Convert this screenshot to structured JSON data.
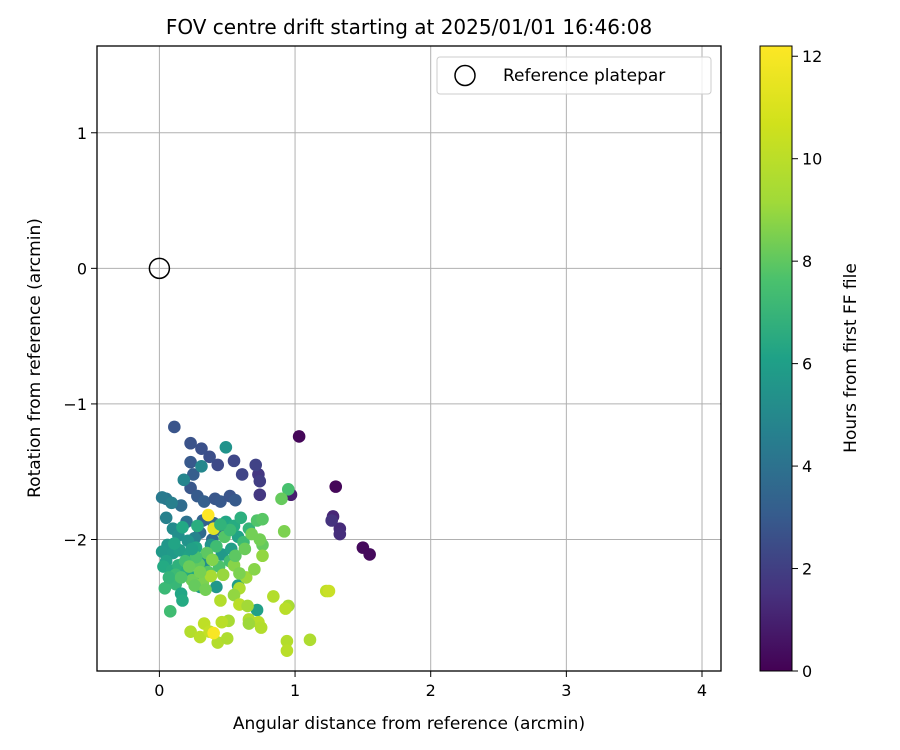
{
  "chart_data": {
    "type": "scatter",
    "title": "FOV centre drift starting at 2025/01/01 16:46:08",
    "xlabel": "Angular distance from reference (arcmin)",
    "ylabel": "Rotation from reference (arcmin)",
    "xlim": [
      -0.46,
      4.14
    ],
    "ylim": [
      -2.97,
      1.64
    ],
    "xticks": [
      0,
      1,
      2,
      3,
      4
    ],
    "yticks": [
      -2,
      -1,
      0,
      1
    ],
    "xtick_labels": [
      "0",
      "1",
      "2",
      "3",
      "4"
    ],
    "ytick_labels": [
      "−2",
      "−1",
      "0",
      "1"
    ],
    "grid": true,
    "legend": {
      "position": "top-right",
      "entries": [
        "Reference platepar"
      ]
    },
    "reference_point": {
      "name": "Reference platepar",
      "x": 0,
      "y": 0,
      "marker": "open-circle"
    },
    "colorbar": {
      "label": "Hours from first FF file",
      "range": [
        0,
        12.2
      ],
      "ticks": [
        0,
        2,
        4,
        6,
        8,
        10,
        12
      ],
      "tick_labels": [
        "0",
        "2",
        "4",
        "6",
        "8",
        "10",
        "12"
      ],
      "colormap": "viridis"
    },
    "points": [
      {
        "x": 1.03,
        "y": -1.24,
        "h": 0.2
      },
      {
        "x": 1.3,
        "y": -1.61,
        "h": 0.2
      },
      {
        "x": 1.5,
        "y": -2.06,
        "h": 0.3
      },
      {
        "x": 1.55,
        "y": -2.11,
        "h": 0.3
      },
      {
        "x": 0.97,
        "y": -1.67,
        "h": 1.0
      },
      {
        "x": 1.28,
        "y": -1.83,
        "h": 1.3
      },
      {
        "x": 1.33,
        "y": -1.92,
        "h": 1.5
      },
      {
        "x": 1.33,
        "y": -1.96,
        "h": 1.6
      },
      {
        "x": 1.27,
        "y": -1.86,
        "h": 1.8
      },
      {
        "x": 0.73,
        "y": -1.52,
        "h": 2.0
      },
      {
        "x": 0.74,
        "y": -1.57,
        "h": 2.2
      },
      {
        "x": 0.74,
        "y": -1.67,
        "h": 2.0
      },
      {
        "x": 0.71,
        "y": -1.45,
        "h": 2.4
      },
      {
        "x": 0.61,
        "y": -1.52,
        "h": 2.5
      },
      {
        "x": 0.55,
        "y": -1.42,
        "h": 2.6
      },
      {
        "x": 0.43,
        "y": -1.45,
        "h": 2.7
      },
      {
        "x": 0.37,
        "y": -1.39,
        "h": 2.9
      },
      {
        "x": 0.31,
        "y": -1.33,
        "h": 3.0
      },
      {
        "x": 0.23,
        "y": -1.29,
        "h": 3.1
      },
      {
        "x": 0.11,
        "y": -1.17,
        "h": 3.2
      },
      {
        "x": 0.23,
        "y": -1.43,
        "h": 3.4
      },
      {
        "x": 0.25,
        "y": -1.52,
        "h": 3.6
      },
      {
        "x": 0.23,
        "y": -1.62,
        "h": 3.3
      },
      {
        "x": 0.28,
        "y": -1.68,
        "h": 3.5
      },
      {
        "x": 0.33,
        "y": -1.72,
        "h": 3.7
      },
      {
        "x": 0.41,
        "y": -1.7,
        "h": 3.3
      },
      {
        "x": 0.45,
        "y": -1.72,
        "h": 3.4
      },
      {
        "x": 0.52,
        "y": -1.68,
        "h": 3.2
      },
      {
        "x": 0.56,
        "y": -1.71,
        "h": 3.5
      },
      {
        "x": 0.32,
        "y": -1.86,
        "h": 3.8
      },
      {
        "x": 0.4,
        "y": -1.88,
        "h": 4.0
      },
      {
        "x": 0.45,
        "y": -1.93,
        "h": 4.1
      },
      {
        "x": 0.39,
        "y": -2.0,
        "h": 4.3
      },
      {
        "x": 0.3,
        "y": -1.95,
        "h": 4.2
      },
      {
        "x": 0.16,
        "y": -1.75,
        "h": 4.3
      },
      {
        "x": 0.05,
        "y": -1.7,
        "h": 4.8
      },
      {
        "x": 0.02,
        "y": -1.69,
        "h": 5.0
      },
      {
        "x": 0.09,
        "y": -1.73,
        "h": 5.2
      },
      {
        "x": 0.05,
        "y": -1.84,
        "h": 5.3
      },
      {
        "x": 0.2,
        "y": -1.87,
        "h": 4.6
      },
      {
        "x": 0.18,
        "y": -1.56,
        "h": 5.5
      },
      {
        "x": 0.31,
        "y": -1.46,
        "h": 5.6
      },
      {
        "x": 0.49,
        "y": -1.32,
        "h": 6.2
      },
      {
        "x": 0.26,
        "y": -1.99,
        "h": 5.4
      },
      {
        "x": 0.1,
        "y": -1.92,
        "h": 5.8
      },
      {
        "x": 0.14,
        "y": -1.97,
        "h": 6.0
      },
      {
        "x": 0.21,
        "y": -2.01,
        "h": 6.2
      },
      {
        "x": 0.06,
        "y": -2.04,
        "h": 6.4
      },
      {
        "x": 0.02,
        "y": -2.09,
        "h": 6.5
      },
      {
        "x": 0.1,
        "y": -2.1,
        "h": 6.6
      },
      {
        "x": 0.15,
        "y": -2.08,
        "h": 6.8
      },
      {
        "x": 0.22,
        "y": -2.12,
        "h": 7.0
      },
      {
        "x": 0.27,
        "y": -2.06,
        "h": 7.2
      },
      {
        "x": 0.05,
        "y": -2.16,
        "h": 7.0
      },
      {
        "x": 0.03,
        "y": -2.2,
        "h": 7.4
      },
      {
        "x": 0.09,
        "y": -2.23,
        "h": 7.5
      },
      {
        "x": 0.14,
        "y": -2.19,
        "h": 7.8
      },
      {
        "x": 0.2,
        "y": -2.24,
        "h": 7.6
      },
      {
        "x": 0.25,
        "y": -2.28,
        "h": 7.3
      },
      {
        "x": 0.08,
        "y": -2.31,
        "h": 7.9
      },
      {
        "x": 0.12,
        "y": -2.33,
        "h": 8.1
      },
      {
        "x": 0.04,
        "y": -2.36,
        "h": 8.2
      },
      {
        "x": 0.16,
        "y": -2.4,
        "h": 7.2
      },
      {
        "x": 0.17,
        "y": -2.45,
        "h": 7.4
      },
      {
        "x": 0.3,
        "y": -2.35,
        "h": 6.6
      },
      {
        "x": 0.42,
        "y": -2.35,
        "h": 6.4
      },
      {
        "x": 0.58,
        "y": -2.34,
        "h": 6.8
      },
      {
        "x": 0.72,
        "y": -2.52,
        "h": 6.9
      },
      {
        "x": 0.34,
        "y": -2.16,
        "h": 6.0
      },
      {
        "x": 0.38,
        "y": -2.04,
        "h": 6.2
      },
      {
        "x": 0.46,
        "y": -2.11,
        "h": 6.5
      },
      {
        "x": 0.53,
        "y": -2.07,
        "h": 6.8
      },
      {
        "x": 0.58,
        "y": -1.98,
        "h": 7.0
      },
      {
        "x": 0.49,
        "y": -1.87,
        "h": 7.2
      },
      {
        "x": 0.55,
        "y": -1.9,
        "h": 7.5
      },
      {
        "x": 0.6,
        "y": -1.84,
        "h": 7.7
      },
      {
        "x": 0.66,
        "y": -1.92,
        "h": 8.0
      },
      {
        "x": 0.62,
        "y": -2.02,
        "h": 8.3
      },
      {
        "x": 0.52,
        "y": -2.16,
        "h": 8.5
      },
      {
        "x": 0.44,
        "y": -2.2,
        "h": 8.7
      },
      {
        "x": 0.36,
        "y": -2.24,
        "h": 9.0
      },
      {
        "x": 0.29,
        "y": -2.18,
        "h": 9.2
      },
      {
        "x": 0.24,
        "y": -2.3,
        "h": 9.5
      },
      {
        "x": 0.32,
        "y": -2.32,
        "h": 9.8
      },
      {
        "x": 0.72,
        "y": -1.86,
        "h": 8.8
      },
      {
        "x": 0.76,
        "y": -1.85,
        "h": 9.0
      },
      {
        "x": 0.76,
        "y": -2.04,
        "h": 9.3
      },
      {
        "x": 0.74,
        "y": -2.0,
        "h": 9.6
      },
      {
        "x": 0.95,
        "y": -1.63,
        "h": 8.6
      },
      {
        "x": 0.9,
        "y": -1.7,
        "h": 9.3
      },
      {
        "x": 0.92,
        "y": -1.94,
        "h": 9.8
      },
      {
        "x": 0.76,
        "y": -2.12,
        "h": 10.2
      },
      {
        "x": 0.55,
        "y": -2.19,
        "h": 10.0
      },
      {
        "x": 0.47,
        "y": -2.26,
        "h": 10.3
      },
      {
        "x": 0.38,
        "y": -2.27,
        "h": 10.6
      },
      {
        "x": 0.64,
        "y": -2.28,
        "h": 10.4
      },
      {
        "x": 0.59,
        "y": -2.36,
        "h": 10.7
      },
      {
        "x": 0.55,
        "y": -2.41,
        "h": 10.2
      },
      {
        "x": 0.45,
        "y": -2.45,
        "h": 10.8
      },
      {
        "x": 0.59,
        "y": -2.48,
        "h": 10.9
      },
      {
        "x": 0.65,
        "y": -2.49,
        "h": 10.5
      },
      {
        "x": 0.84,
        "y": -2.42,
        "h": 10.8
      },
      {
        "x": 0.95,
        "y": -2.49,
        "h": 10.6
      },
      {
        "x": 0.93,
        "y": -2.51,
        "h": 10.9
      },
      {
        "x": 0.66,
        "y": -2.59,
        "h": 10.7
      },
      {
        "x": 0.73,
        "y": -2.61,
        "h": 10.9
      },
      {
        "x": 0.75,
        "y": -2.65,
        "h": 10.8
      },
      {
        "x": 0.66,
        "y": -2.62,
        "h": 10.4
      },
      {
        "x": 0.51,
        "y": -2.6,
        "h": 10.6
      },
      {
        "x": 0.46,
        "y": -2.61,
        "h": 10.9
      },
      {
        "x": 0.33,
        "y": -2.62,
        "h": 11.0
      },
      {
        "x": 0.23,
        "y": -2.68,
        "h": 10.8
      },
      {
        "x": 0.3,
        "y": -2.72,
        "h": 10.9
      },
      {
        "x": 0.37,
        "y": -2.68,
        "h": 11.1
      },
      {
        "x": 0.43,
        "y": -2.76,
        "h": 10.8
      },
      {
        "x": 0.5,
        "y": -2.73,
        "h": 10.7
      },
      {
        "x": 0.94,
        "y": -2.75,
        "h": 10.8
      },
      {
        "x": 0.94,
        "y": -2.82,
        "h": 10.9
      },
      {
        "x": 1.11,
        "y": -2.74,
        "h": 10.7
      },
      {
        "x": 1.23,
        "y": -2.38,
        "h": 11.0
      },
      {
        "x": 1.25,
        "y": -2.38,
        "h": 11.2
      },
      {
        "x": 0.36,
        "y": -1.82,
        "h": 12.2
      },
      {
        "x": 0.4,
        "y": -2.69,
        "h": 12.1
      },
      {
        "x": 0.4,
        "y": -1.92,
        "h": 11.7
      },
      {
        "x": 0.42,
        "y": -2.05,
        "h": 8.4
      },
      {
        "x": 0.48,
        "y": -1.98,
        "h": 8.9
      },
      {
        "x": 0.35,
        "y": -2.1,
        "h": 9.1
      },
      {
        "x": 0.27,
        "y": -2.13,
        "h": 8.7
      },
      {
        "x": 0.19,
        "y": -2.16,
        "h": 8.5
      },
      {
        "x": 0.12,
        "y": -2.26,
        "h": 8.3
      },
      {
        "x": 0.07,
        "y": -2.28,
        "h": 8.0
      },
      {
        "x": 0.22,
        "y": -2.2,
        "h": 9.4
      },
      {
        "x": 0.3,
        "y": -2.24,
        "h": 9.7
      },
      {
        "x": 0.39,
        "y": -2.15,
        "h": 9.9
      },
      {
        "x": 0.56,
        "y": -2.12,
        "h": 9.1
      },
      {
        "x": 0.63,
        "y": -2.07,
        "h": 9.4
      },
      {
        "x": 0.68,
        "y": -1.96,
        "h": 9.6
      },
      {
        "x": 0.52,
        "y": -1.93,
        "h": 8.2
      },
      {
        "x": 0.45,
        "y": -1.89,
        "h": 7.9
      },
      {
        "x": 0.28,
        "y": -1.9,
        "h": 7.6
      },
      {
        "x": 0.17,
        "y": -1.91,
        "h": 7.3
      },
      {
        "x": 0.24,
        "y": -2.07,
        "h": 6.9
      },
      {
        "x": 0.11,
        "y": -2.03,
        "h": 7.1
      },
      {
        "x": 0.16,
        "y": -2.28,
        "h": 8.8
      },
      {
        "x": 0.26,
        "y": -2.34,
        "h": 9.3
      },
      {
        "x": 0.34,
        "y": -2.37,
        "h": 9.6
      },
      {
        "x": 0.08,
        "y": -2.53,
        "h": 8.4
      },
      {
        "x": 0.59,
        "y": -2.25,
        "h": 9.8
      },
      {
        "x": 0.7,
        "y": -2.22,
        "h": 10.0
      }
    ]
  }
}
